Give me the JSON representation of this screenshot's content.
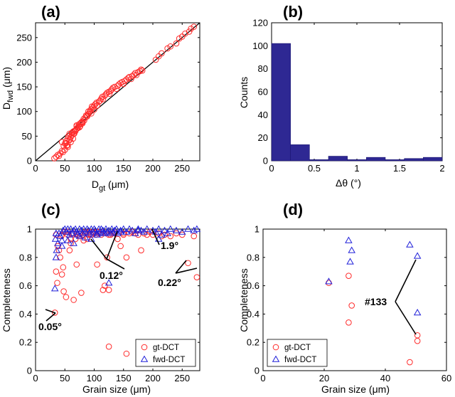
{
  "panels": {
    "a": {
      "label": "(a)"
    },
    "b": {
      "label": "(b)"
    },
    "c": {
      "label": "(c)"
    },
    "d": {
      "label": "(d)"
    }
  },
  "colors": {
    "gt": "#ff2a2a",
    "fwd": "#1f1fd9",
    "bar": "#2e2893",
    "line": "#000000"
  },
  "chart_data": [
    {
      "panel": "a",
      "type": "scatter",
      "xlabel": "D_gt (μm)",
      "ylabel": "D_fwd (μm)",
      "xlim": [
        0,
        280
      ],
      "ylim": [
        0,
        280
      ],
      "xticks": [
        0,
        50,
        100,
        150,
        200,
        250
      ],
      "yticks": [
        0,
        50,
        100,
        150,
        200,
        250
      ],
      "reference_line": [
        [
          0,
          0
        ],
        [
          280,
          280
        ]
      ],
      "series": [
        {
          "marker": "circle",
          "x": [
            32,
            35,
            38,
            40,
            42,
            45,
            47,
            50,
            50,
            52,
            53,
            55,
            55,
            56,
            58,
            58,
            60,
            60,
            62,
            63,
            64,
            65,
            66,
            68,
            70,
            70,
            72,
            74,
            75,
            76,
            78,
            80,
            80,
            82,
            83,
            85,
            86,
            88,
            90,
            90,
            92,
            93,
            95,
            96,
            98,
            100,
            102,
            104,
            105,
            108,
            110,
            112,
            114,
            115,
            118,
            120,
            122,
            125,
            126,
            128,
            130,
            132,
            135,
            138,
            140,
            142,
            145,
            148,
            150,
            152,
            155,
            158,
            160,
            163,
            165,
            168,
            170,
            172,
            175,
            178,
            180,
            182,
            205,
            210,
            215,
            225,
            230,
            240,
            245,
            250,
            255,
            262,
            265,
            270,
            52,
            55,
            60,
            65,
            70,
            75,
            45,
            48,
            58,
            62,
            68,
            72,
            80,
            88,
            95,
            100
          ],
          "y": [
            5,
            8,
            12,
            10,
            15,
            20,
            18,
            35,
            22,
            40,
            30,
            45,
            28,
            50,
            42,
            55,
            48,
            38,
            52,
            58,
            45,
            60,
            55,
            62,
            65,
            70,
            68,
            72,
            75,
            70,
            78,
            80,
            76,
            85,
            82,
            88,
            92,
            90,
            95,
            100,
            98,
            102,
            105,
            110,
            108,
            112,
            115,
            118,
            112,
            120,
            122,
            126,
            130,
            125,
            132,
            135,
            138,
            140,
            136,
            142,
            145,
            148,
            150,
            146,
            152,
            155,
            158,
            160,
            156,
            162,
            165,
            168,
            170,
            166,
            172,
            175,
            178,
            174,
            180,
            182,
            185,
            183,
            205,
            212,
            218,
            228,
            232,
            238,
            248,
            252,
            258,
            262,
            268,
            272,
            36,
            32,
            48,
            55,
            72,
            68,
            38,
            30,
            44,
            56,
            60,
            66,
            78,
            92,
            96,
            104
          ]
        }
      ]
    },
    {
      "panel": "b",
      "type": "bar",
      "xlabel": "Δθ (°)",
      "ylabel": "Counts",
      "xlim": [
        0,
        2
      ],
      "ylim": [
        0,
        120
      ],
      "xticks": [
        0,
        0.5,
        1,
        1.5,
        2
      ],
      "yticks": [
        0,
        20,
        40,
        60,
        80,
        100,
        120
      ],
      "bin_width": 0.2222,
      "bin_starts": [
        0,
        0.2222,
        0.4444,
        0.6667,
        0.8889,
        1.1111,
        1.3333,
        1.5556,
        1.7778
      ],
      "values": [
        102,
        14,
        1,
        4,
        1,
        3,
        1,
        2,
        3
      ]
    },
    {
      "panel": "c",
      "type": "scatter",
      "xlabel": "Grain size (μm)",
      "ylabel": "Completeness",
      "xlim": [
        0,
        280
      ],
      "ylim": [
        0,
        1
      ],
      "xticks": [
        0,
        50,
        100,
        150,
        200,
        250
      ],
      "yticks": [
        0,
        0.2,
        0.4,
        0.6,
        0.8,
        1
      ],
      "legend": {
        "position": "bottom-right",
        "entries": [
          "gt-DCT",
          "fwd-DCT"
        ]
      },
      "series": [
        {
          "name": "gt-DCT",
          "marker": "circle",
          "x": [
            33,
            35,
            37,
            38,
            40,
            42,
            44,
            45,
            47,
            48,
            50,
            52,
            55,
            58,
            60,
            62,
            65,
            68,
            70,
            72,
            75,
            78,
            80,
            82,
            85,
            88,
            90,
            92,
            95,
            98,
            100,
            103,
            105,
            108,
            110,
            112,
            115,
            118,
            120,
            122,
            125,
            128,
            130,
            135,
            140,
            145,
            150,
            155,
            160,
            165,
            170,
            175,
            180,
            185,
            190,
            195,
            200,
            210,
            215,
            220,
            230,
            240,
            250,
            260,
            270,
            275,
            35,
            45,
            55,
            60,
            65,
            75,
            85,
            95,
            105,
            115,
            125,
            135,
            150,
            125,
            155
          ],
          "y": [
            0.41,
            0.7,
            0.62,
            0.88,
            0.85,
            0.8,
            0.95,
            0.68,
            0.73,
            0.56,
            0.98,
            0.52,
            0.96,
            0.85,
            0.9,
            0.97,
            0.5,
            0.93,
            0.75,
            0.96,
            0.97,
            0.55,
            0.96,
            0.92,
            0.98,
            0.93,
            0.96,
            0.98,
            0.96,
            0.98,
            0.97,
            0.96,
            0.75,
            0.98,
            0.97,
            0.96,
            0.98,
            0.6,
            0.97,
            0.8,
            0.57,
            0.96,
            0.97,
            0.98,
            0.93,
            0.88,
            0.96,
            0.8,
            0.97,
            0.98,
            0.97,
            0.96,
            0.85,
            0.97,
            0.96,
            0.98,
            0.96,
            0.97,
            0.95,
            0.96,
            0.95,
            0.97,
            0.96,
            0.76,
            0.95,
            0.66,
            0.96,
            0.96,
            0.98,
            0.93,
            0.97,
            0.95,
            0.97,
            0.96,
            0.98,
            0.57,
            0.96,
            0.97,
            0.97,
            0.17,
            0.12
          ]
        },
        {
          "name": "fwd-DCT",
          "marker": "triangle",
          "x": [
            33,
            34,
            35,
            36,
            38,
            40,
            42,
            45,
            47,
            50,
            52,
            55,
            58,
            60,
            62,
            65,
            68,
            70,
            72,
            75,
            78,
            80,
            82,
            85,
            88,
            90,
            92,
            95,
            98,
            100,
            102,
            105,
            108,
            110,
            112,
            115,
            118,
            120,
            122,
            125,
            128,
            130,
            132,
            135,
            138,
            140,
            145,
            150,
            155,
            160,
            165,
            170,
            175,
            180,
            185,
            190,
            200,
            205,
            210,
            215,
            220,
            225,
            230,
            240,
            250,
            260,
            270,
            275,
            35,
            45,
            55,
            65,
            75,
            85,
            95,
            105,
            115,
            125,
            135,
            145,
            175,
            210
          ],
          "y": [
            0.58,
            0.93,
            0.8,
            0.85,
            0.9,
            0.97,
            0.95,
            0.92,
            0.99,
            1.0,
            0.98,
            1.0,
            0.96,
            1.0,
            0.97,
            0.99,
            1.0,
            0.98,
            0.96,
            1.0,
            0.99,
            0.97,
            1.0,
            0.98,
            1.0,
            0.99,
            0.97,
            1.0,
            0.98,
            1.0,
            0.99,
            0.97,
            1.0,
            0.98,
            1.0,
            0.99,
            0.97,
            1.0,
            0.98,
            0.99,
            0.97,
            1.0,
            0.98,
            0.99,
            1.0,
            0.97,
            0.99,
            1.0,
            0.98,
            1.0,
            0.99,
            0.97,
            1.0,
            0.99,
            0.98,
            1.0,
            0.99,
            0.98,
            1.0,
            0.96,
            0.99,
            0.97,
            1.0,
            0.99,
            0.98,
            1.0,
            0.99,
            1.0,
            0.97,
            0.88,
            0.92,
            0.9,
            0.95,
            0.94,
            0.93,
            0.96,
            0.97,
            0.62,
            0.99,
            0.98,
            0.99,
            0.93
          ]
        }
      ],
      "annotations": [
        "0.05°",
        "0.12°",
        "1.9°",
        "0.22°"
      ]
    },
    {
      "panel": "d",
      "type": "scatter",
      "xlabel": "Grain size (μm)",
      "ylabel": "Completeness",
      "xlim": [
        0,
        60
      ],
      "ylim": [
        0,
        1
      ],
      "xticks": [
        0,
        20,
        40,
        60
      ],
      "yticks": [
        0,
        0.2,
        0.4,
        0.6,
        0.8,
        1
      ],
      "legend": {
        "position": "bottom-left",
        "entries": [
          "gt-DCT",
          "fwd-DCT"
        ]
      },
      "series": [
        {
          "name": "gt-DCT",
          "marker": "circle",
          "x": [
            21.5,
            28.0,
            28.0,
            29.0,
            48.0,
            50.5,
            50.5
          ],
          "y": [
            0.62,
            0.67,
            0.34,
            0.46,
            0.06,
            0.25,
            0.21
          ]
        },
        {
          "name": "fwd-DCT",
          "marker": "triangle",
          "x": [
            21.5,
            28.0,
            28.5,
            29.0,
            48.0,
            50.5,
            50.5
          ],
          "y": [
            0.63,
            0.92,
            0.77,
            0.85,
            0.89,
            0.81,
            0.41
          ]
        }
      ],
      "annotations": [
        "#133"
      ]
    }
  ]
}
